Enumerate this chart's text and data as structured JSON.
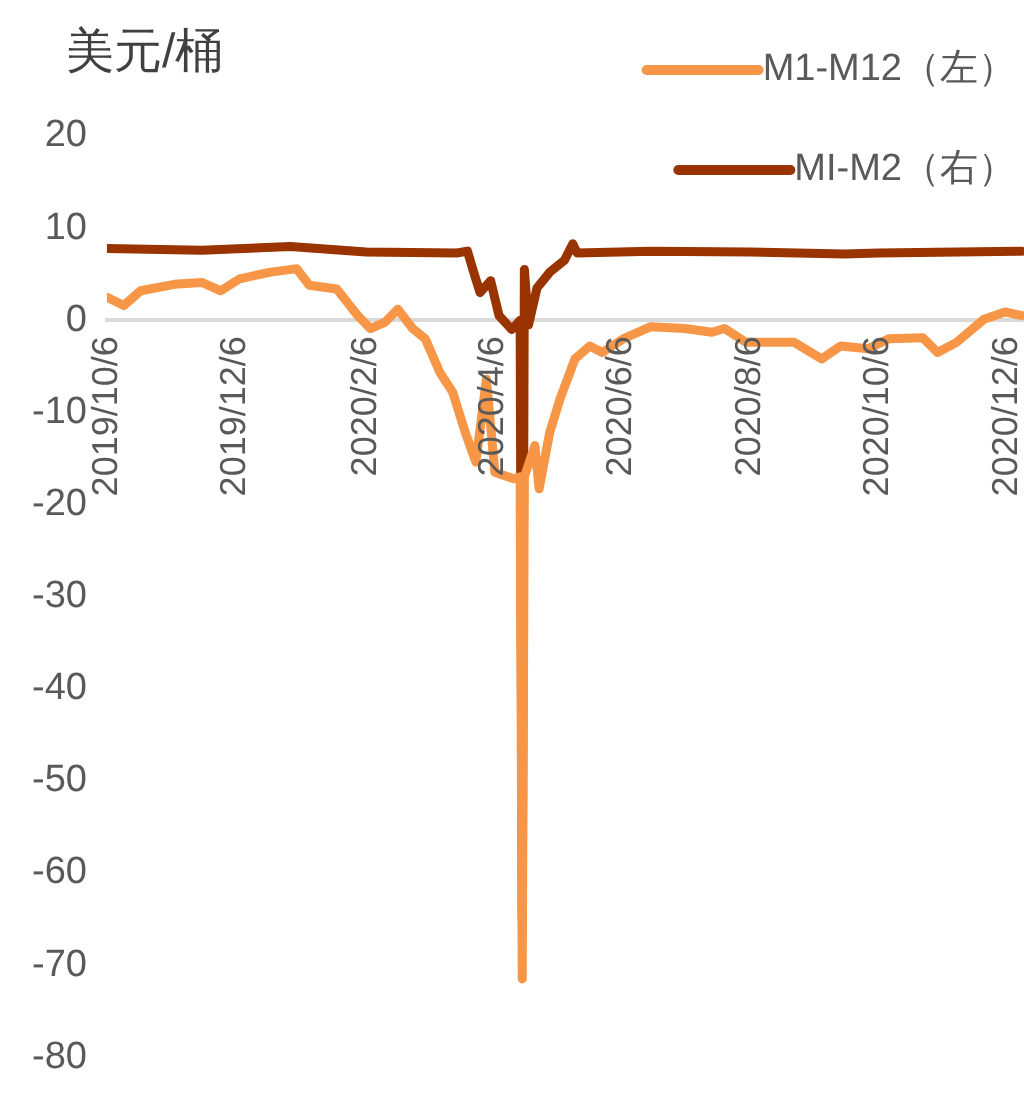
{
  "chart_data": {
    "type": "line",
    "ylabel": "美元/桶",
    "xlim": [
      "2019-10-06",
      "2020-12-14"
    ],
    "xticks": [
      {
        "value": "2019-10-06",
        "label": "2019/10/6"
      },
      {
        "value": "2019-12-06",
        "label": "2019/12/6"
      },
      {
        "value": "2020-02-06",
        "label": "2020/2/6"
      },
      {
        "value": "2020-04-06",
        "label": "2020/4/6"
      },
      {
        "value": "2020-06-06",
        "label": "2020/6/6"
      },
      {
        "value": "2020-08-06",
        "label": "2020/8/6"
      },
      {
        "value": "2020-10-06",
        "label": "2020/10/6"
      },
      {
        "value": "2020-12-06",
        "label": "2020/12/6"
      }
    ],
    "ylim": [
      -80,
      20
    ],
    "yticks": [
      -80,
      -70,
      -60,
      -50,
      -40,
      -30,
      -20,
      -10,
      0,
      10,
      20
    ],
    "grid": false,
    "legend": "top right",
    "marker": "none",
    "line_style": "solid",
    "series": [
      {
        "name": "M1-M12（左）",
        "color": "#f79646",
        "x": [
          "2019-10-06",
          "2019-10-14",
          "2019-10-22",
          "2019-11-07",
          "2019-11-20",
          "2019-11-29",
          "2019-12-08",
          "2019-12-22",
          "2020-01-04",
          "2020-01-10",
          "2020-01-23",
          "2020-02-02",
          "2020-02-08",
          "2020-02-15",
          "2020-02-21",
          "2020-02-28",
          "2020-03-05",
          "2020-03-12",
          "2020-03-18",
          "2020-03-24",
          "2020-03-29",
          "2020-04-03",
          "2020-04-07",
          "2020-04-16",
          "2020-04-19",
          "2020-04-20",
          "2020-04-21",
          "2020-04-26",
          "2020-04-28",
          "2020-05-03",
          "2020-05-08",
          "2020-05-15",
          "2020-05-22",
          "2020-05-28",
          "2020-06-07",
          "2020-06-20",
          "2020-07-06",
          "2020-07-19",
          "2020-07-25",
          "2020-08-04",
          "2020-08-27",
          "2020-09-09",
          "2020-09-18",
          "2020-10-01",
          "2020-10-11",
          "2020-10-27",
          "2020-11-03",
          "2020-11-12",
          "2020-11-25",
          "2020-12-05",
          "2020-12-13"
        ],
        "values": [
          2.5,
          1.6,
          3.2,
          3.9,
          4.1,
          3.2,
          4.5,
          5.2,
          5.6,
          3.8,
          3.4,
          0.5,
          -0.9,
          -0.2,
          1.2,
          -0.9,
          -2,
          -5.7,
          -7.8,
          -12.2,
          -15.4,
          -6.4,
          -16.5,
          -17.2,
          -17,
          -71.5,
          -17,
          -13.6,
          -18.3,
          -12.2,
          -8.5,
          -4.2,
          -2.8,
          -3.5,
          -2,
          -0.7,
          -0.9,
          -1.3,
          -0.9,
          -2.4,
          -2.4,
          -4.2,
          -2.8,
          -3.1,
          -2,
          -1.9,
          -3.5,
          -2.4,
          0.1,
          0.9,
          0.5
        ]
      },
      {
        "name": "MI-M2（右）",
        "color": "#993300",
        "x": [
          "2019-10-06",
          "2019-11-20",
          "2020-01-01",
          "2020-02-06",
          "2020-03-20",
          "2020-03-25",
          "2020-03-28",
          "2020-03-31",
          "2020-04-05",
          "2020-04-09",
          "2020-04-15",
          "2020-04-19",
          "2020-04-20",
          "2020-04-21",
          "2020-04-23",
          "2020-04-27",
          "2020-05-03",
          "2020-05-10",
          "2020-05-14",
          "2020-05-16",
          "2020-06-20",
          "2020-08-06",
          "2020-09-20",
          "2020-10-06",
          "2020-12-13"
        ],
        "values": [
          7.8,
          7.6,
          8,
          7.4,
          7.3,
          7.5,
          5.2,
          3,
          4.3,
          0.5,
          -1,
          0,
          -65,
          5.5,
          -0.5,
          3.5,
          5.2,
          6.5,
          8.3,
          7.3,
          7.5,
          7.4,
          7.2,
          7.3,
          7.5
        ]
      }
    ]
  }
}
